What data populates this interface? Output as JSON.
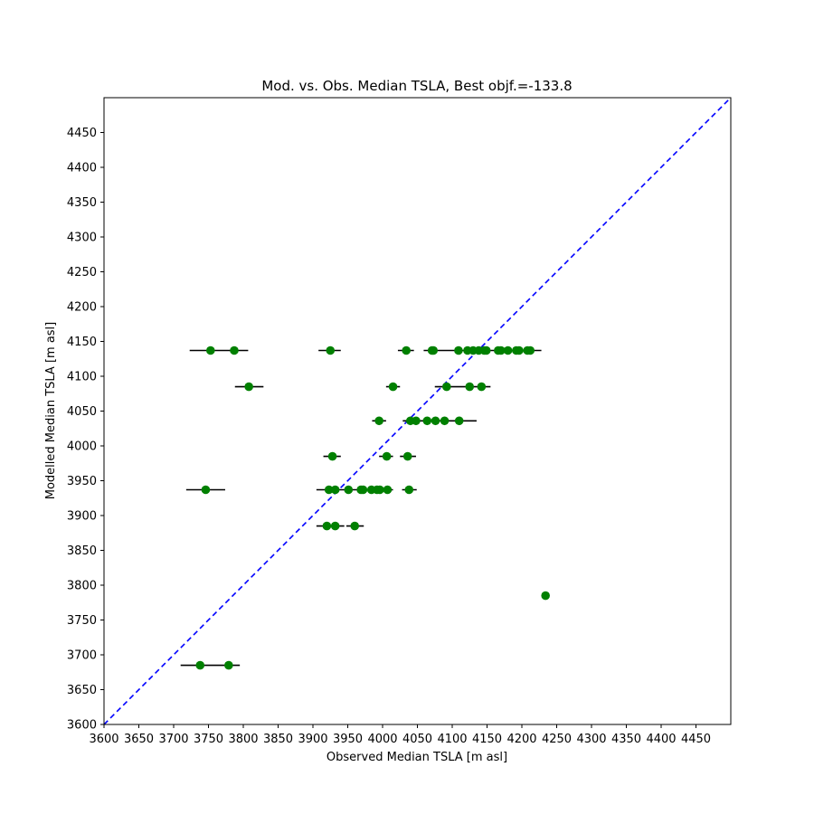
{
  "chart_data": {
    "type": "scatter",
    "title": "Mod. vs. Obs. Median TSLA, Best objf.=-133.8",
    "xlabel": "Observed Median TSLA [m asl]",
    "ylabel": "Modelled Median TSLA [m asl]",
    "xlim": [
      3600,
      4500
    ],
    "ylim": [
      3600,
      4500
    ],
    "x_ticks": [
      3600,
      3650,
      3700,
      3750,
      3800,
      3850,
      3900,
      3950,
      4000,
      4050,
      4100,
      4150,
      4200,
      4250,
      4300,
      4350,
      4400,
      4450
    ],
    "y_ticks": [
      3600,
      3650,
      3700,
      3750,
      3800,
      3850,
      3900,
      3950,
      4000,
      4050,
      4100,
      4150,
      4200,
      4250,
      4300,
      4350,
      4400,
      4450
    ],
    "grid": false,
    "point_color": "#008000",
    "errorbar_color": "#000000",
    "reference_line": {
      "from": [
        3600,
        3600
      ],
      "to": [
        4500,
        4500
      ],
      "color": "#0000ff",
      "style": "dashed"
    },
    "points": [
      {
        "x": 3753,
        "y": 4137,
        "xerr": [
          3723,
          3807
        ]
      },
      {
        "x": 3787,
        "y": 4137
      },
      {
        "x": 3925,
        "y": 4137,
        "xerr": [
          3908,
          3940
        ]
      },
      {
        "x": 4034,
        "y": 4137,
        "xerr": [
          4022,
          4045
        ]
      },
      {
        "x": 4071,
        "y": 4137,
        "xerr": [
          4059,
          4212
        ]
      },
      {
        "x": 4073,
        "y": 4137
      },
      {
        "x": 4109,
        "y": 4137
      },
      {
        "x": 4122,
        "y": 4137
      },
      {
        "x": 4130,
        "y": 4137
      },
      {
        "x": 4138,
        "y": 4137
      },
      {
        "x": 4146,
        "y": 4137
      },
      {
        "x": 4149,
        "y": 4137
      },
      {
        "x": 4166,
        "y": 4137
      },
      {
        "x": 4170,
        "y": 4137
      },
      {
        "x": 4180,
        "y": 4137
      },
      {
        "x": 4192,
        "y": 4137
      },
      {
        "x": 4196,
        "y": 4137
      },
      {
        "x": 4208,
        "y": 4137
      },
      {
        "x": 4212,
        "y": 4137,
        "xerr": [
          4196,
          4228
        ]
      },
      {
        "x": 3808,
        "y": 4085,
        "xerr": [
          3788,
          3829
        ]
      },
      {
        "x": 4015,
        "y": 4085,
        "xerr": [
          4005,
          4025
        ]
      },
      {
        "x": 4092,
        "y": 4085,
        "xerr": [
          4075,
          4155
        ]
      },
      {
        "x": 4125,
        "y": 4085
      },
      {
        "x": 4142,
        "y": 4085
      },
      {
        "x": 3995,
        "y": 4036,
        "xerr": [
          3985,
          4005
        ]
      },
      {
        "x": 4040,
        "y": 4036,
        "xerr": [
          4029,
          4135
        ]
      },
      {
        "x": 4048,
        "y": 4036
      },
      {
        "x": 4064,
        "y": 4036
      },
      {
        "x": 4076,
        "y": 4036
      },
      {
        "x": 4089,
        "y": 4036
      },
      {
        "x": 4110,
        "y": 4036
      },
      {
        "x": 3928,
        "y": 3985,
        "xerr": [
          3915,
          3940
        ]
      },
      {
        "x": 4006,
        "y": 3985,
        "xerr": [
          3995,
          4015
        ]
      },
      {
        "x": 4036,
        "y": 3985,
        "xerr": [
          4025,
          4048
        ]
      },
      {
        "x": 3746,
        "y": 3937,
        "xerr": [
          3718,
          3774
        ]
      },
      {
        "x": 3923,
        "y": 3937,
        "xerr": [
          3905,
          4015
        ]
      },
      {
        "x": 3932,
        "y": 3937
      },
      {
        "x": 3951,
        "y": 3937
      },
      {
        "x": 3969,
        "y": 3937
      },
      {
        "x": 3972,
        "y": 3937
      },
      {
        "x": 3984,
        "y": 3937
      },
      {
        "x": 3992,
        "y": 3937
      },
      {
        "x": 3996,
        "y": 3937
      },
      {
        "x": 4007,
        "y": 3937
      },
      {
        "x": 4038,
        "y": 3937,
        "xerr": [
          4028,
          4049
        ]
      },
      {
        "x": 3920,
        "y": 3885,
        "xerr": [
          3905,
          3945
        ]
      },
      {
        "x": 3932,
        "y": 3885
      },
      {
        "x": 3960,
        "y": 3885,
        "xerr": [
          3948,
          3973
        ]
      },
      {
        "x": 4234,
        "y": 3785
      },
      {
        "x": 3738,
        "y": 3685,
        "xerr": [
          3710,
          3795
        ]
      },
      {
        "x": 3779,
        "y": 3685
      }
    ]
  }
}
